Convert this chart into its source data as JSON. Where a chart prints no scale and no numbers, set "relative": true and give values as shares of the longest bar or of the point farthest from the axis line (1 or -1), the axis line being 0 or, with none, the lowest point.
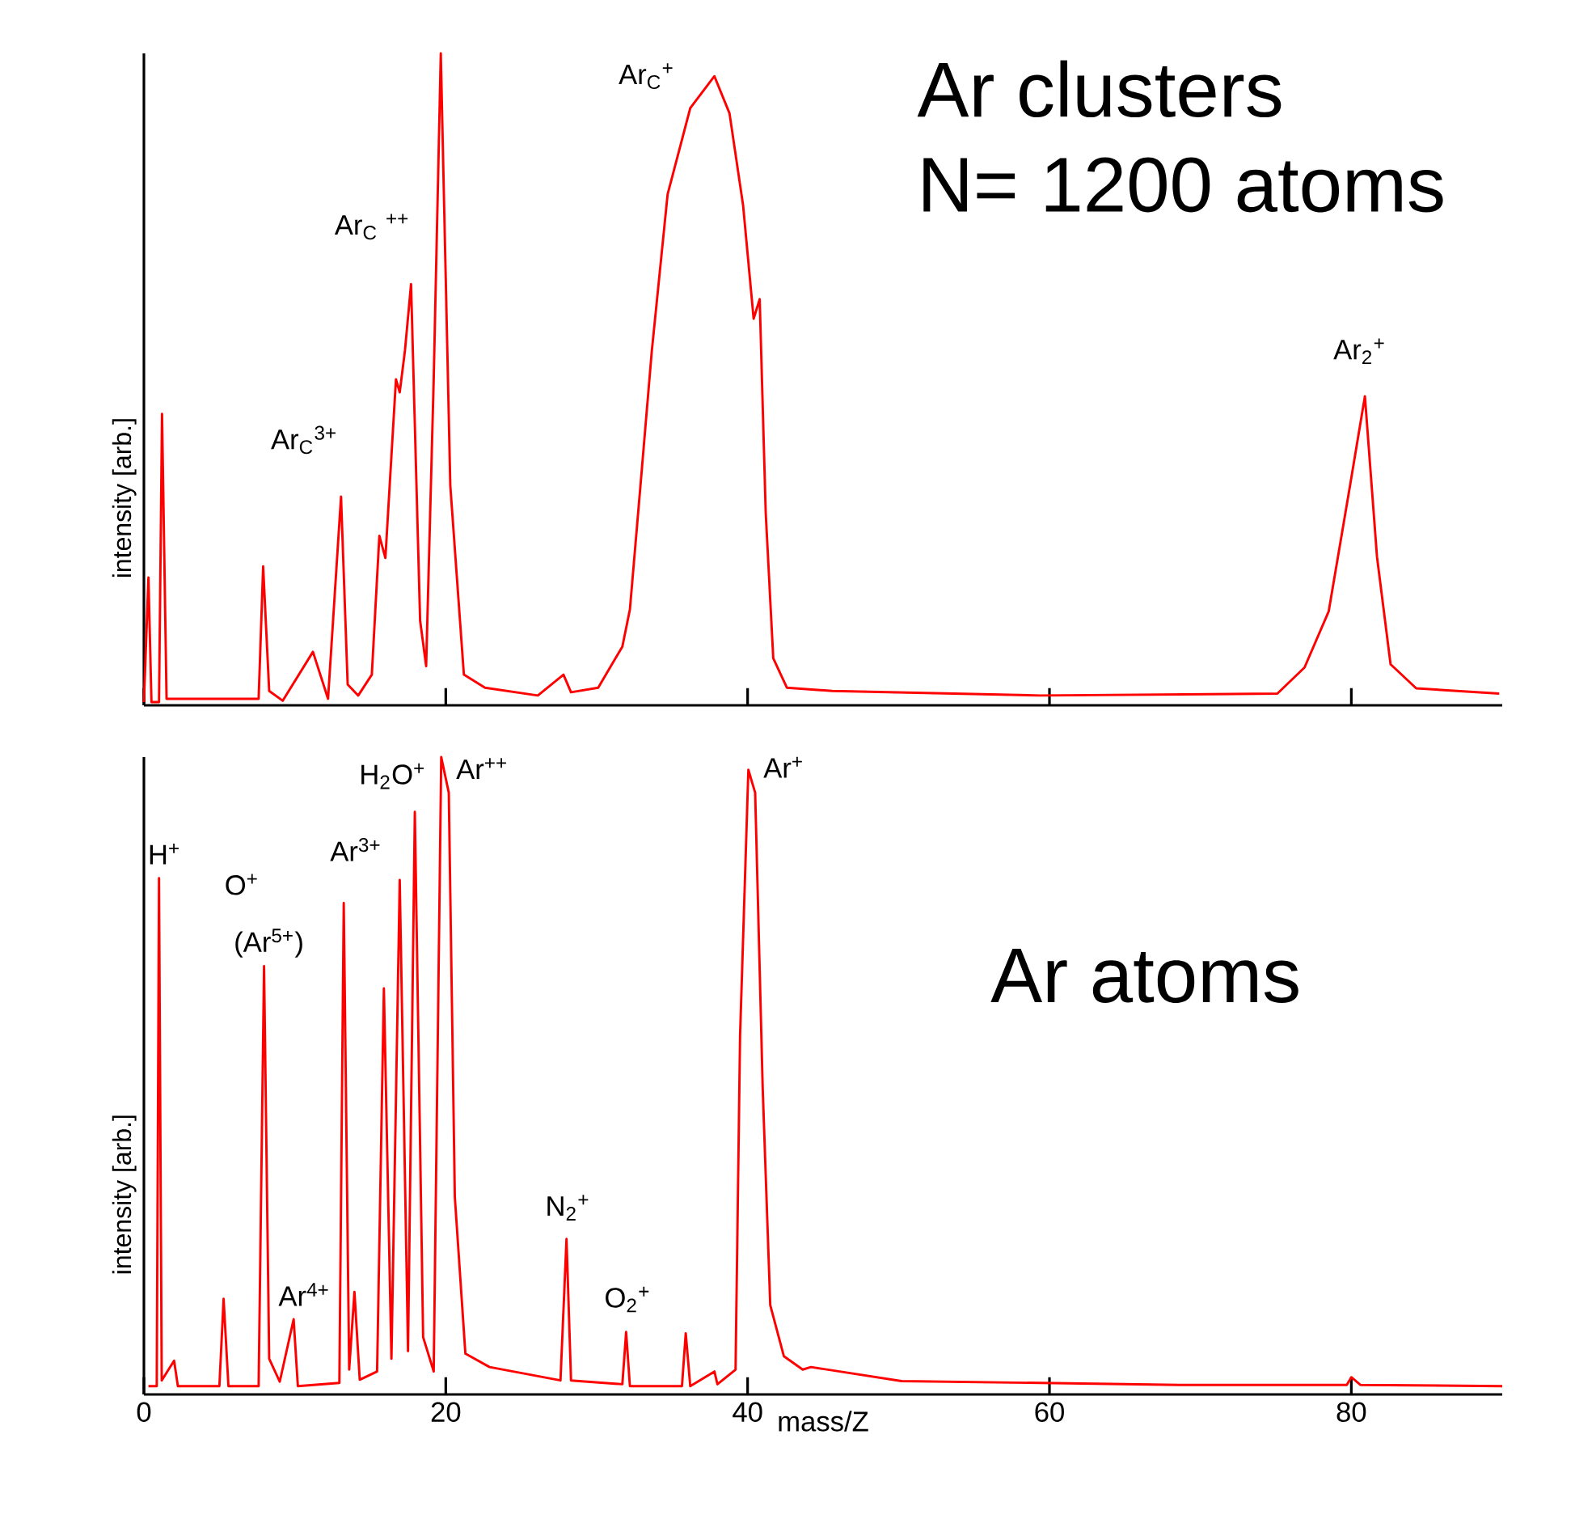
{
  "chart_data": [
    {
      "type": "line",
      "relative": true,
      "color": "#ff0000",
      "ylabel": "intensity [arb.]",
      "tick_labels": false,
      "xlim": [
        0,
        90
      ],
      "xticks": [
        0,
        20,
        40,
        60,
        80
      ],
      "x": [
        0.0,
        0.3,
        0.5,
        1.0,
        1.2,
        1.5,
        5.0,
        7.6,
        7.9,
        8.3,
        9.2,
        11.2,
        12.2,
        13.06,
        13.5,
        14.2,
        15.1,
        15.6,
        16.0,
        16.7,
        16.95,
        17.3,
        17.7,
        18.3,
        18.7,
        19.2,
        19.67,
        20.3,
        21.2,
        22.6,
        26.1,
        27.8,
        28.3,
        30.1,
        31.7,
        32.2,
        32.9,
        33.65,
        34.7,
        36.2,
        37.8,
        38.8,
        39.7,
        40.4,
        40.8,
        41.2,
        41.7,
        42.6,
        45.6,
        59.4,
        75.1,
        76.9,
        78.5,
        79.9,
        80.9,
        81.7,
        82.6,
        84.3,
        89.8
      ],
      "values": [
        0.005,
        0.196,
        0.005,
        0.005,
        0.447,
        0.01,
        0.01,
        0.01,
        0.213,
        0.022,
        0.007,
        0.082,
        0.01,
        0.32,
        0.032,
        0.015,
        0.047,
        0.26,
        0.226,
        0.5,
        0.48,
        0.545,
        0.646,
        0.13,
        0.06,
        0.5,
        1.0,
        0.337,
        0.047,
        0.027,
        0.015,
        0.047,
        0.02,
        0.027,
        0.09,
        0.147,
        0.337,
        0.543,
        0.784,
        0.916,
        0.965,
        0.908,
        0.767,
        0.593,
        0.623,
        0.295,
        0.072,
        0.027,
        0.022,
        0.015,
        0.018,
        0.058,
        0.144,
        0.335,
        0.474,
        0.228,
        0.063,
        0.026,
        0.018
      ],
      "annotations": [
        "Ar$_{C}$$^{3+}$",
        "Ar$_{C}$ $^{++}$",
        "Ar$_{C}$$^{+}$",
        "Ar$_{2}$$^{+}$",
        "Ar clusters",
        "N= 1200 atoms"
      ]
    },
    {
      "type": "line",
      "relative": true,
      "color": "#ff0000",
      "ylabel": "intensity [arb.]",
      "xlabel": "mass/Z",
      "tick_labels": "x",
      "xlim": [
        0,
        90
      ],
      "xticks": [
        0,
        20,
        40,
        60,
        80
      ],
      "x": [
        0.3,
        0.85,
        1.0,
        1.18,
        2.0,
        2.25,
        5.0,
        5.28,
        5.6,
        7.6,
        7.96,
        8.3,
        9.0,
        9.92,
        10.2,
        12.95,
        13.24,
        13.6,
        13.95,
        14.3,
        15.45,
        15.9,
        16.4,
        16.95,
        17.5,
        17.95,
        18.5,
        19.2,
        19.7,
        20.2,
        20.6,
        21.3,
        22.9,
        27.6,
        28.0,
        28.3,
        31.7,
        31.95,
        32.2,
        35.65,
        35.9,
        36.2,
        37.8,
        38.0,
        39.2,
        39.5,
        40.05,
        40.5,
        41.0,
        41.5,
        42.4,
        43.65,
        44.2,
        50.2,
        68.6,
        79.7,
        80.0,
        80.6,
        90.0
      ],
      "values": [
        0.013,
        0.013,
        0.81,
        0.022,
        0.053,
        0.013,
        0.013,
        0.15,
        0.013,
        0.013,
        0.672,
        0.056,
        0.02,
        0.118,
        0.013,
        0.018,
        0.771,
        0.039,
        0.161,
        0.023,
        0.036,
        0.637,
        0.056,
        0.807,
        0.068,
        0.914,
        0.09,
        0.036,
        1.0,
        0.944,
        0.31,
        0.064,
        0.043,
        0.022,
        0.244,
        0.022,
        0.016,
        0.098,
        0.013,
        0.013,
        0.096,
        0.013,
        0.036,
        0.016,
        0.039,
        0.563,
        0.98,
        0.944,
        0.48,
        0.14,
        0.06,
        0.039,
        0.043,
        0.021,
        0.015,
        0.015,
        0.027,
        0.015,
        0.013
      ],
      "annotations": [
        "H$^{+}$",
        "O$^{+}$",
        "(Ar$^{5+}$)",
        "Ar$^{4+}$",
        "Ar$^{3+}$",
        "H$_{2}$O$^{+}$",
        "Ar$^{++}$",
        "N$_{2}$$^{+}$",
        "O$_{2}$$^{+}$",
        "Ar$^{+}$",
        "Ar atoms"
      ]
    }
  ]
}
